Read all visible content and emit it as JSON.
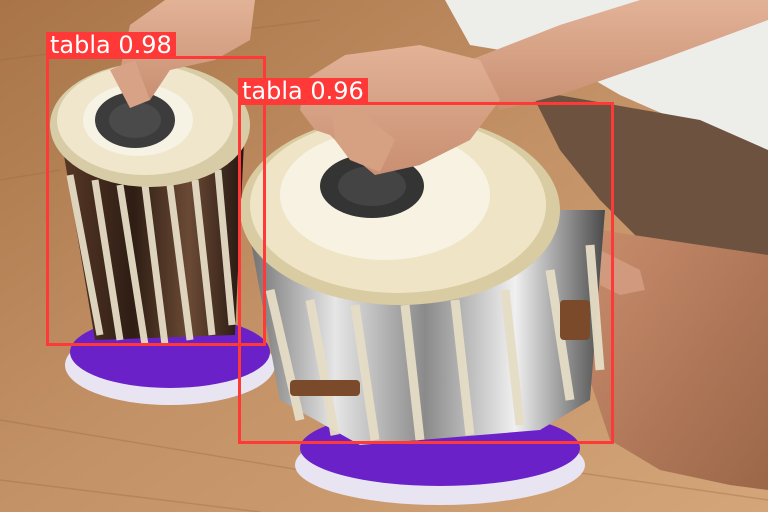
{
  "detections": [
    {
      "label": "tabla",
      "confidence": "0.98"
    },
    {
      "label": "tabla",
      "confidence": "0.96"
    }
  ],
  "colors": {
    "box": "#ff3838",
    "label_text": "#ffffff",
    "floor": "#b8865a",
    "cushion": "#6a22c8"
  }
}
